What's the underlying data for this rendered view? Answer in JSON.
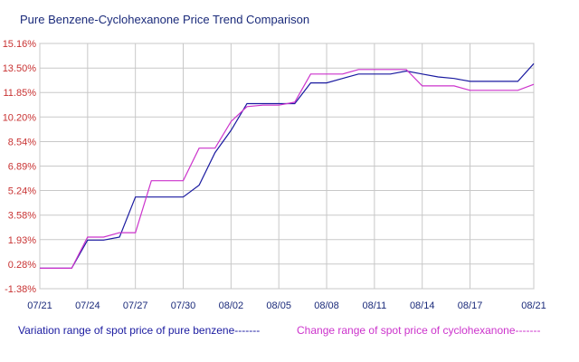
{
  "title": "Pure Benzene-Cyclohexanone Price Trend Comparison",
  "chart_data": {
    "type": "line",
    "title": "Pure Benzene-Cyclohexanone Price Trend Comparison",
    "xlabel": "",
    "ylabel": "",
    "ylim": [
      -1.38,
      15.16
    ],
    "y_ticks": [
      "15.16%",
      "13.50%",
      "11.85%",
      "10.20%",
      "8.54%",
      "6.89%",
      "5.24%",
      "3.58%",
      "1.93%",
      "0.28%",
      "-1.38%"
    ],
    "y_tick_values": [
      15.16,
      13.5,
      11.85,
      10.2,
      8.54,
      6.89,
      5.24,
      3.58,
      1.93,
      0.28,
      -1.38
    ],
    "x_ticks": [
      "07/21",
      "07/24",
      "07/27",
      "07/30",
      "08/02",
      "08/05",
      "08/08",
      "08/11",
      "08/14",
      "08/17",
      "08/21"
    ],
    "x": [
      "07/21",
      "07/22",
      "07/23",
      "07/24",
      "07/25",
      "07/26",
      "07/27",
      "07/28",
      "07/29",
      "07/30",
      "07/31",
      "08/01",
      "08/02",
      "08/03",
      "08/04",
      "08/05",
      "08/06",
      "08/07",
      "08/08",
      "08/09",
      "08/10",
      "08/11",
      "08/12",
      "08/13",
      "08/14",
      "08/15",
      "08/16",
      "08/17",
      "08/18",
      "08/19",
      "08/20",
      "08/21"
    ],
    "grid": true,
    "legend_position": "bottom",
    "series": [
      {
        "name": "Variation range of spot price of pure benzene-------",
        "color": "#1a1aa0",
        "values": [
          0.0,
          0.0,
          0.0,
          1.9,
          1.9,
          2.1,
          4.8,
          4.8,
          4.8,
          4.8,
          5.6,
          7.8,
          9.3,
          11.1,
          11.1,
          11.1,
          11.1,
          12.5,
          12.5,
          12.8,
          13.1,
          13.1,
          13.1,
          13.3,
          13.1,
          12.9,
          12.8,
          12.6,
          12.6,
          12.6,
          12.6,
          13.8
        ]
      },
      {
        "name": "Change range of spot price of cyclohexanone-------",
        "color": "#cc33cc",
        "values": [
          0.0,
          0.0,
          0.0,
          2.1,
          2.1,
          2.4,
          2.4,
          5.9,
          5.9,
          5.9,
          8.1,
          8.1,
          9.9,
          10.9,
          11.0,
          11.0,
          11.2,
          13.1,
          13.1,
          13.1,
          13.4,
          13.4,
          13.4,
          13.4,
          12.3,
          12.3,
          12.3,
          12.0,
          12.0,
          12.0,
          12.0,
          12.4
        ]
      }
    ]
  },
  "legend": {
    "benzene": "Variation range of spot price of pure benzene-------",
    "cyclohexanone": "Change range of spot price of cyclohexanone-------"
  }
}
